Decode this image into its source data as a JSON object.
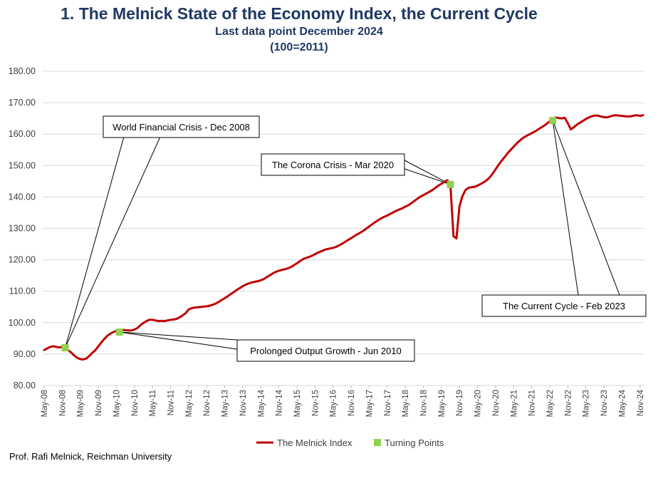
{
  "title": "1.  The Melnick State of the Economy Index, the Current Cycle",
  "subtitle": "Last data point December  2024",
  "base_note": "(100=2011)",
  "footer": "Prof. Rafi Melnick, Reichman University",
  "colors": {
    "title": "#1F3864",
    "line": "#C00000",
    "marker": "#92D050",
    "grid": "#D9D9D9"
  },
  "chart_data": {
    "type": "line",
    "ylim": [
      80,
      180
    ],
    "yticks": [
      "80.00",
      "90.00",
      "100.00",
      "110.00",
      "120.00",
      "130.00",
      "140.00",
      "150.00",
      "160.00",
      "170.00",
      "180.00"
    ],
    "x_range": [
      "2008-05",
      "2024-12"
    ],
    "xticks": [
      "May-08",
      "Nov-08",
      "May-09",
      "Nov-09",
      "May-10",
      "Nov-10",
      "May-11",
      "Nov-11",
      "May-12",
      "Nov-12",
      "May-13",
      "Nov-13",
      "May-14",
      "Nov-14",
      "May-15",
      "Nov-15",
      "May-16",
      "Nov-16",
      "May-17",
      "Nov-17",
      "May-18",
      "Nov-18",
      "May-19",
      "Nov-19",
      "May-20",
      "Nov-20",
      "May-21",
      "Nov-21",
      "May-22",
      "Nov-22",
      "May-23",
      "Nov-23",
      "May-24",
      "Nov-24"
    ],
    "grid": true,
    "legend_position": "bottom",
    "series": [
      {
        "name": "The Melnick Index",
        "type": "line",
        "points": [
          [
            "2008-05",
            91.3
          ],
          [
            "2008-06",
            91.8
          ],
          [
            "2008-07",
            92.3
          ],
          [
            "2008-08",
            92.5
          ],
          [
            "2008-09",
            92.3
          ],
          [
            "2008-10",
            92.1
          ],
          [
            "2008-11",
            92.3
          ],
          [
            "2008-12",
            91.9
          ],
          [
            "2009-01",
            91.2
          ],
          [
            "2009-02",
            90.5
          ],
          [
            "2009-03",
            89.5
          ],
          [
            "2009-04",
            88.8
          ],
          [
            "2009-05",
            88.4
          ],
          [
            "2009-06",
            88.3
          ],
          [
            "2009-07",
            88.6
          ],
          [
            "2009-08",
            89.4
          ],
          [
            "2009-09",
            90.4
          ],
          [
            "2009-10",
            91.2
          ],
          [
            "2009-11",
            92.5
          ],
          [
            "2009-12",
            93.7
          ],
          [
            "2010-01",
            94.8
          ],
          [
            "2010-02",
            95.8
          ],
          [
            "2010-03",
            96.5
          ],
          [
            "2010-04",
            97.0
          ],
          [
            "2010-05",
            97.4
          ],
          [
            "2010-06",
            97.6
          ],
          [
            "2010-07",
            97.7
          ],
          [
            "2010-08",
            97.6
          ],
          [
            "2010-09",
            97.5
          ],
          [
            "2010-10",
            97.5
          ],
          [
            "2010-11",
            97.8
          ],
          [
            "2010-12",
            98.3
          ],
          [
            "2011-01",
            99.2
          ],
          [
            "2011-02",
            99.9
          ],
          [
            "2011-03",
            100.5
          ],
          [
            "2011-04",
            100.9
          ],
          [
            "2011-05",
            100.9
          ],
          [
            "2011-06",
            100.7
          ],
          [
            "2011-07",
            100.5
          ],
          [
            "2011-08",
            100.6
          ],
          [
            "2011-09",
            100.5
          ],
          [
            "2011-10",
            100.7
          ],
          [
            "2011-11",
            100.9
          ],
          [
            "2011-12",
            101.0
          ],
          [
            "2012-01",
            101.2
          ],
          [
            "2012-02",
            101.7
          ],
          [
            "2012-03",
            102.3
          ],
          [
            "2012-04",
            103.0
          ],
          [
            "2012-05",
            104.2
          ],
          [
            "2012-06",
            104.6
          ],
          [
            "2012-07",
            104.8
          ],
          [
            "2012-08",
            104.9
          ],
          [
            "2012-09",
            105.0
          ],
          [
            "2012-10",
            105.1
          ],
          [
            "2012-11",
            105.2
          ],
          [
            "2012-12",
            105.4
          ],
          [
            "2013-01",
            105.7
          ],
          [
            "2013-02",
            106.1
          ],
          [
            "2013-03",
            106.6
          ],
          [
            "2013-04",
            107.2
          ],
          [
            "2013-05",
            107.8
          ],
          [
            "2013-06",
            108.4
          ],
          [
            "2013-07",
            109.1
          ],
          [
            "2013-08",
            109.7
          ],
          [
            "2013-09",
            110.4
          ],
          [
            "2013-10",
            111.0
          ],
          [
            "2013-11",
            111.6
          ],
          [
            "2013-12",
            112.1
          ],
          [
            "2014-01",
            112.5
          ],
          [
            "2014-02",
            112.8
          ],
          [
            "2014-03",
            113.0
          ],
          [
            "2014-04",
            113.2
          ],
          [
            "2014-05",
            113.5
          ],
          [
            "2014-06",
            113.9
          ],
          [
            "2014-07",
            114.5
          ],
          [
            "2014-08",
            115.1
          ],
          [
            "2014-09",
            115.7
          ],
          [
            "2014-10",
            116.2
          ],
          [
            "2014-11",
            116.5
          ],
          [
            "2014-12",
            116.8
          ],
          [
            "2015-01",
            117.0
          ],
          [
            "2015-02",
            117.3
          ],
          [
            "2015-03",
            117.7
          ],
          [
            "2015-04",
            118.3
          ],
          [
            "2015-05",
            118.9
          ],
          [
            "2015-06",
            119.6
          ],
          [
            "2015-07",
            120.2
          ],
          [
            "2015-08",
            120.6
          ],
          [
            "2015-09",
            120.9
          ],
          [
            "2015-10",
            121.3
          ],
          [
            "2015-11",
            121.8
          ],
          [
            "2015-12",
            122.3
          ],
          [
            "2016-01",
            122.7
          ],
          [
            "2016-02",
            123.1
          ],
          [
            "2016-03",
            123.4
          ],
          [
            "2016-04",
            123.6
          ],
          [
            "2016-05",
            123.8
          ],
          [
            "2016-06",
            124.1
          ],
          [
            "2016-07",
            124.6
          ],
          [
            "2016-08",
            125.1
          ],
          [
            "2016-09",
            125.7
          ],
          [
            "2016-10",
            126.3
          ],
          [
            "2016-11",
            126.9
          ],
          [
            "2016-12",
            127.5
          ],
          [
            "2017-01",
            128.1
          ],
          [
            "2017-02",
            128.6
          ],
          [
            "2017-03",
            129.2
          ],
          [
            "2017-04",
            129.9
          ],
          [
            "2017-05",
            130.6
          ],
          [
            "2017-06",
            131.3
          ],
          [
            "2017-07",
            132.0
          ],
          [
            "2017-08",
            132.6
          ],
          [
            "2017-09",
            133.2
          ],
          [
            "2017-10",
            133.7
          ],
          [
            "2017-11",
            134.1
          ],
          [
            "2017-12",
            134.6
          ],
          [
            "2018-01",
            135.1
          ],
          [
            "2018-02",
            135.6
          ],
          [
            "2018-03",
            136.0
          ],
          [
            "2018-04",
            136.4
          ],
          [
            "2018-05",
            136.9
          ],
          [
            "2018-06",
            137.4
          ],
          [
            "2018-07",
            138.0
          ],
          [
            "2018-08",
            138.7
          ],
          [
            "2018-09",
            139.4
          ],
          [
            "2018-10",
            140.1
          ],
          [
            "2018-11",
            140.6
          ],
          [
            "2018-12",
            141.1
          ],
          [
            "2019-01",
            141.6
          ],
          [
            "2019-02",
            142.2
          ],
          [
            "2019-03",
            142.9
          ],
          [
            "2019-04",
            143.6
          ],
          [
            "2019-05",
            144.2
          ],
          [
            "2019-06",
            144.8
          ],
          [
            "2019-07",
            145.3
          ],
          [
            "2019-08",
            143.9
          ],
          [
            "2019-09",
            127.5
          ],
          [
            "2019-10",
            126.8
          ],
          [
            "2019-11",
            137.0
          ],
          [
            "2019-12",
            140.3
          ],
          [
            "2020-01",
            142.2
          ],
          [
            "2020-02",
            142.9
          ],
          [
            "2020-03",
            143.1
          ],
          [
            "2020-04",
            143.2
          ],
          [
            "2020-05",
            143.6
          ],
          [
            "2020-06",
            144.1
          ],
          [
            "2020-07",
            144.6
          ],
          [
            "2020-08",
            145.3
          ],
          [
            "2020-09",
            146.2
          ],
          [
            "2020-10",
            147.4
          ],
          [
            "2020-11",
            148.8
          ],
          [
            "2020-12",
            150.2
          ],
          [
            "2021-01",
            151.5
          ],
          [
            "2021-02",
            152.7
          ],
          [
            "2021-03",
            153.9
          ],
          [
            "2021-04",
            155.0
          ],
          [
            "2021-05",
            156.0
          ],
          [
            "2021-06",
            157.0
          ],
          [
            "2021-07",
            157.9
          ],
          [
            "2021-08",
            158.7
          ],
          [
            "2021-09",
            159.3
          ],
          [
            "2021-10",
            159.8
          ],
          [
            "2021-11",
            160.3
          ],
          [
            "2021-12",
            160.8
          ],
          [
            "2022-01",
            161.4
          ],
          [
            "2022-02",
            162.0
          ],
          [
            "2022-03",
            162.6
          ],
          [
            "2022-04",
            163.3
          ],
          [
            "2022-05",
            164.1
          ],
          [
            "2022-06",
            164.9
          ],
          [
            "2022-07",
            165.3
          ],
          [
            "2022-08",
            165.1
          ],
          [
            "2022-09",
            165.0
          ],
          [
            "2022-10",
            165.2
          ],
          [
            "2022-11",
            163.5
          ],
          [
            "2022-12",
            161.5
          ],
          [
            "2023-01",
            162.2
          ],
          [
            "2023-02",
            163.0
          ],
          [
            "2023-03",
            163.6
          ],
          [
            "2023-04",
            164.2
          ],
          [
            "2023-05",
            164.8
          ],
          [
            "2023-06",
            165.3
          ],
          [
            "2023-07",
            165.7
          ],
          [
            "2023-08",
            165.9
          ],
          [
            "2023-09",
            165.9
          ],
          [
            "2023-10",
            165.6
          ],
          [
            "2023-11",
            165.4
          ],
          [
            "2023-12",
            165.3
          ],
          [
            "2024-01",
            165.6
          ],
          [
            "2024-02",
            165.9
          ],
          [
            "2024-03",
            166.0
          ],
          [
            "2024-04",
            165.9
          ],
          [
            "2024-05",
            165.8
          ],
          [
            "2024-06",
            165.7
          ],
          [
            "2024-07",
            165.6
          ],
          [
            "2024-08",
            165.7
          ],
          [
            "2024-09",
            165.9
          ],
          [
            "2024-10",
            166.0
          ],
          [
            "2024-11",
            165.8
          ],
          [
            "2024-12",
            166.0
          ]
        ]
      },
      {
        "name": "Turning Points",
        "type": "scatter",
        "points": [
          [
            "2008-12",
            92.0
          ],
          [
            "2010-06",
            97.0
          ],
          [
            "2019-08",
            144.0
          ],
          [
            "2022-06",
            164.3
          ]
        ]
      }
    ],
    "annotations": [
      "World Financial  Crisis - Dec 2008",
      "Prolonged Output  Growth - Jun 2010",
      "The Corona Crisis - Mar 2020",
      "The Current Cycle - Feb 2023"
    ]
  }
}
